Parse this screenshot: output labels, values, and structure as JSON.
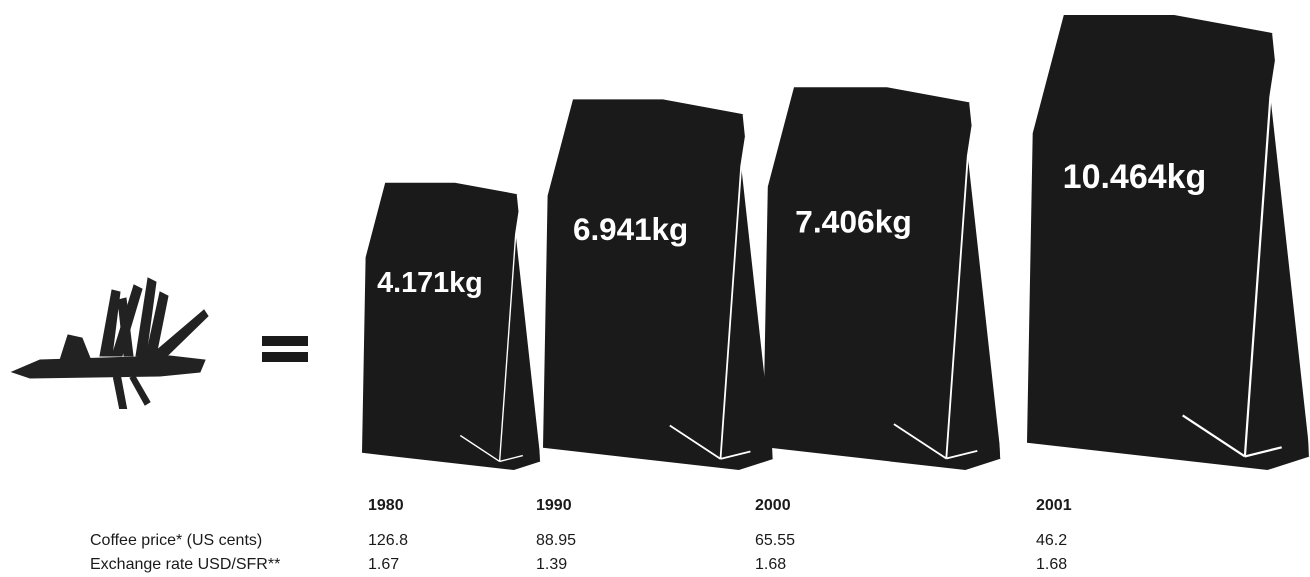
{
  "chart_data": {
    "type": "bar",
    "categories": [
      "1980",
      "1990",
      "2000",
      "2001"
    ],
    "values": [
      4.171,
      6.941,
      7.406,
      10.464
    ],
    "value_labels": [
      "4.171kg",
      "6.941kg",
      "7.406kg",
      "10.464kg"
    ],
    "table": {
      "rows": [
        {
          "label": "Coffee price* (US cents)",
          "values": [
            "126.8",
            "88.95",
            "65.55",
            "46.2"
          ]
        },
        {
          "label": "Exchange rate USD/SFR**",
          "values": [
            "1.67",
            "1.39",
            "1.68",
            "1.68"
          ]
        }
      ]
    }
  },
  "colors": {
    "bag": "#1a1a1a",
    "bag_fold": "#ffffff",
    "knife": "#222222"
  },
  "icons": {
    "knife": "swiss-army-knife-icon",
    "equals": "equals-icon"
  }
}
